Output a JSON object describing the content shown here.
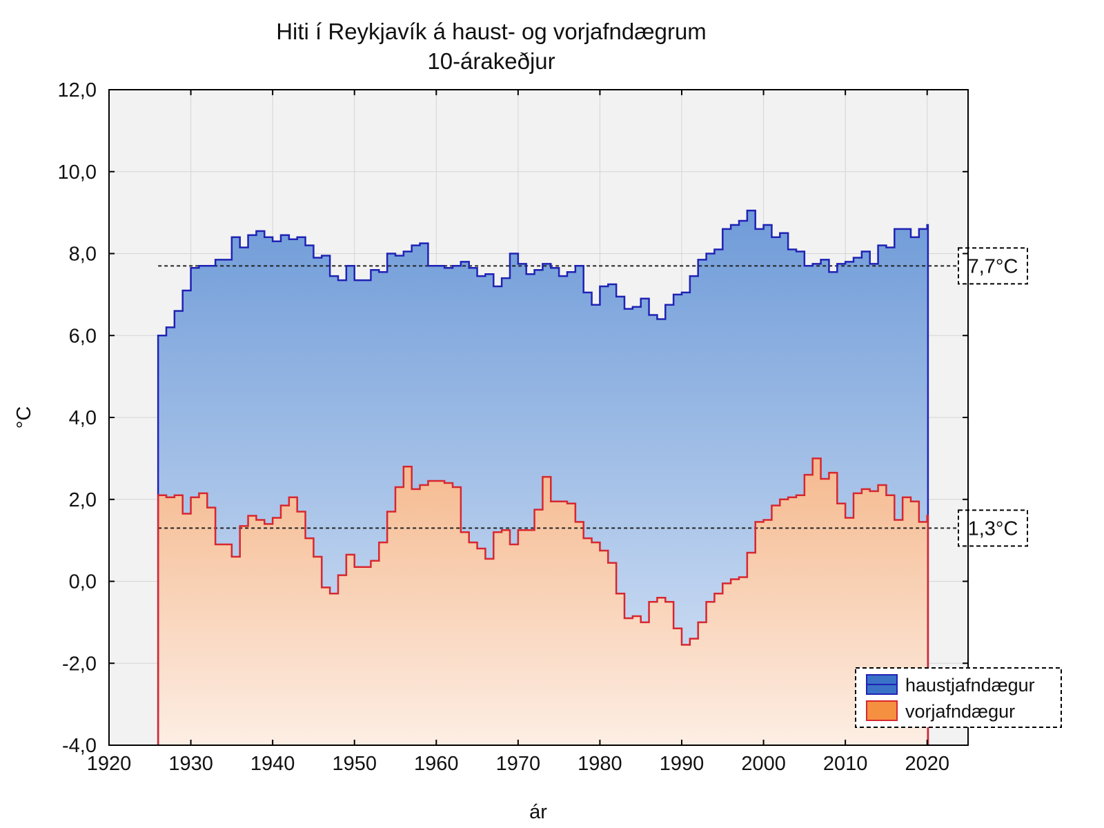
{
  "chart_data": {
    "type": "area",
    "title": "Hiti í Reykjavík á haust- og vorjafndægrum",
    "subtitle": "10-árakeðjur",
    "xlabel": "ár",
    "ylabel": "°C",
    "xlim": [
      1920,
      2025
    ],
    "ylim": [
      -4.0,
      12.0
    ],
    "x_ticks": [
      1920,
      1930,
      1940,
      1950,
      1960,
      1970,
      1980,
      1990,
      2000,
      2010,
      2020
    ],
    "x_tick_labels": [
      "1920",
      "1930",
      "1940",
      "1950",
      "1960",
      "1970",
      "1980",
      "1990",
      "2000",
      "2010",
      "2020"
    ],
    "y_ticks": [
      -4,
      -2,
      0,
      2,
      4,
      6,
      8,
      10,
      12
    ],
    "y_tick_labels": [
      "-4,0",
      "-2,0",
      "0,0",
      "2,0",
      "4,0",
      "6,0",
      "8,0",
      "10,0",
      "12,0"
    ],
    "grid": true,
    "legend_position": "bottom-right",
    "x": [
      1926,
      1927,
      1928,
      1929,
      1930,
      1931,
      1932,
      1933,
      1934,
      1935,
      1936,
      1937,
      1938,
      1939,
      1940,
      1941,
      1942,
      1943,
      1944,
      1945,
      1946,
      1947,
      1948,
      1949,
      1950,
      1951,
      1952,
      1953,
      1954,
      1955,
      1956,
      1957,
      1958,
      1959,
      1960,
      1961,
      1962,
      1963,
      1964,
      1965,
      1966,
      1967,
      1968,
      1969,
      1970,
      1971,
      1972,
      1973,
      1974,
      1975,
      1976,
      1977,
      1978,
      1979,
      1980,
      1981,
      1982,
      1983,
      1984,
      1985,
      1986,
      1987,
      1988,
      1989,
      1990,
      1991,
      1992,
      1993,
      1994,
      1995,
      1996,
      1997,
      1998,
      1999,
      2000,
      2001,
      2002,
      2003,
      2004,
      2005,
      2006,
      2007,
      2008,
      2009,
      2010,
      2011,
      2012,
      2013,
      2014,
      2015,
      2016,
      2017,
      2018,
      2019,
      2020
    ],
    "series": [
      {
        "name": "haustjafndægur",
        "color": "#1f22b4",
        "fill_top": "#6f9bd8",
        "fill_bottom": "#dbe7f7",
        "values": [
          6.0,
          6.2,
          6.6,
          7.1,
          7.65,
          7.7,
          7.7,
          7.85,
          7.85,
          8.4,
          8.15,
          8.45,
          8.55,
          8.4,
          8.3,
          8.45,
          8.35,
          8.4,
          8.2,
          7.9,
          7.95,
          7.45,
          7.35,
          7.7,
          7.35,
          7.35,
          7.6,
          7.55,
          8.0,
          7.95,
          8.05,
          8.2,
          8.25,
          7.7,
          7.7,
          7.65,
          7.7,
          7.8,
          7.65,
          7.45,
          7.5,
          7.2,
          7.4,
          8.0,
          7.75,
          7.5,
          7.6,
          7.75,
          7.65,
          7.45,
          7.55,
          7.7,
          7.05,
          6.75,
          7.2,
          7.25,
          6.95,
          6.65,
          6.7,
          6.9,
          6.5,
          6.4,
          6.75,
          7.0,
          7.05,
          7.45,
          7.85,
          8.0,
          8.1,
          8.6,
          8.7,
          8.8,
          9.05,
          8.6,
          8.7,
          8.4,
          8.5,
          8.1,
          8.05,
          7.7,
          7.75,
          7.85,
          7.55,
          7.75,
          7.8,
          7.9,
          8.05,
          7.75,
          8.2,
          8.15,
          8.6,
          8.6,
          8.4,
          8.6,
          8.7
        ]
      },
      {
        "name": "vorjafndægur",
        "color": "#d8262e",
        "fill_top": "#f5b98e",
        "fill_bottom": "#fdeee4",
        "values": [
          2.1,
          2.05,
          2.1,
          1.65,
          2.05,
          2.15,
          1.8,
          0.9,
          0.9,
          0.6,
          1.35,
          1.6,
          1.5,
          1.4,
          1.55,
          1.85,
          2.05,
          1.7,
          1.05,
          0.6,
          -0.15,
          -0.3,
          0.15,
          0.65,
          0.35,
          0.35,
          0.5,
          0.95,
          1.7,
          2.3,
          2.8,
          2.25,
          2.35,
          2.45,
          2.45,
          2.4,
          2.3,
          1.2,
          0.95,
          0.8,
          0.55,
          1.2,
          1.25,
          0.9,
          1.25,
          1.25,
          1.75,
          2.55,
          1.95,
          1.95,
          1.9,
          1.45,
          1.05,
          0.95,
          0.75,
          0.45,
          -0.3,
          -0.9,
          -0.85,
          -1.0,
          -0.5,
          -0.4,
          -0.5,
          -1.15,
          -1.55,
          -1.4,
          -1.0,
          -0.5,
          -0.3,
          -0.05,
          0.05,
          0.1,
          0.7,
          1.45,
          1.5,
          1.85,
          2.0,
          2.05,
          2.1,
          2.6,
          3.0,
          2.5,
          2.65,
          1.9,
          1.55,
          2.15,
          2.25,
          2.2,
          2.35,
          2.1,
          1.5,
          2.05,
          1.95,
          1.45,
          1.6
        ]
      }
    ],
    "reference_lines": [
      {
        "value": 7.7,
        "label": "7,7°C"
      },
      {
        "value": 1.3,
        "label": "1,3°C"
      }
    ]
  }
}
